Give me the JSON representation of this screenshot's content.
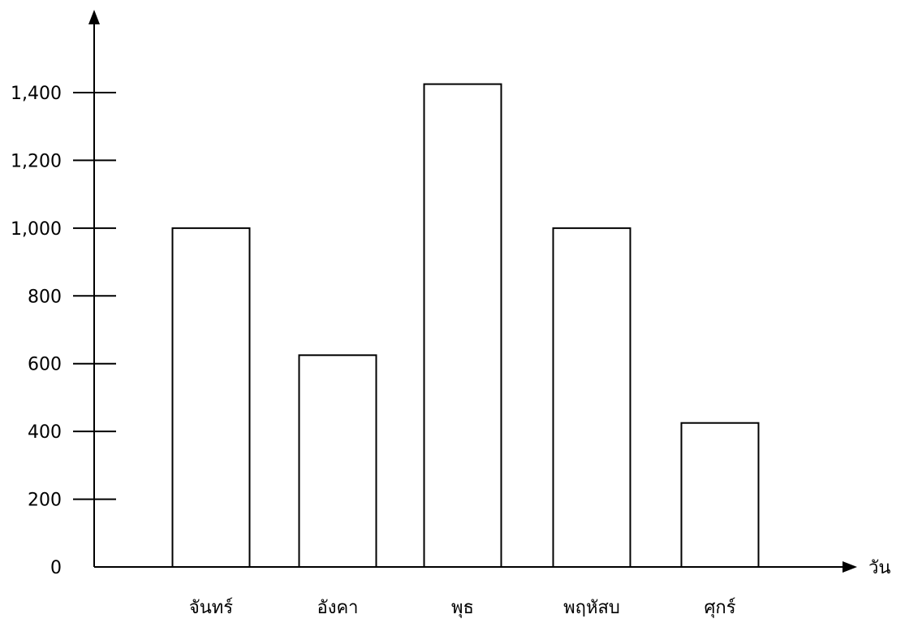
{
  "chart_data": {
    "type": "bar",
    "title": "",
    "xlabel": "วัน",
    "ylabel": "",
    "categories": [
      "จันทร์",
      "อังคา",
      "พุธ",
      "พฤหัสบ",
      "ศุกร์"
    ],
    "values": [
      1000,
      625,
      1425,
      1000,
      425
    ],
    "ylim": [
      0,
      1400
    ],
    "yticks": [
      0,
      200,
      400,
      600,
      800,
      1000,
      1200,
      1400
    ],
    "ytick_labels": [
      "0",
      "200",
      "400",
      "600",
      "800",
      "1,000",
      "1,200",
      "1,400"
    ],
    "grid": false,
    "legend": "none",
    "bar_fill": "#ffffff",
    "bar_stroke": "#000000",
    "axis_color": "#000000"
  }
}
